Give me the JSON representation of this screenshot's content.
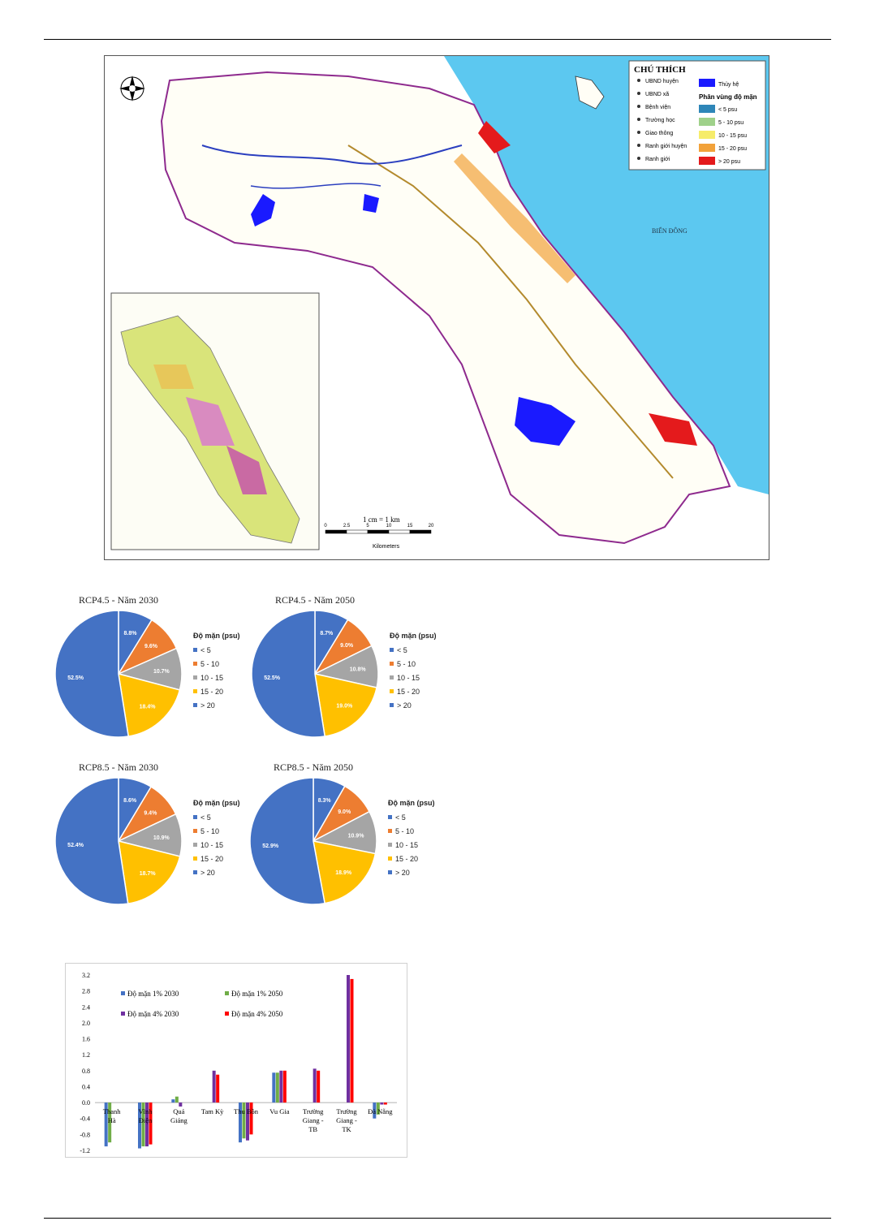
{
  "map": {
    "legend_title": "CHÚ THÍCH",
    "legend_items": [
      "UBND huyện",
      "UBND xã",
      "Bệnh viện",
      "Trường học",
      "Giao thông",
      "Ranh giới huyện",
      "Ranh giới"
    ],
    "legend_water": "Thủy hệ",
    "legend_salinity_title": "Phân vùng độ mặn",
    "salinity_classes": [
      "< 5 psu",
      "5 - 10 psu",
      "10 - 15 psu",
      "15 - 20 psu",
      "> 20 psu"
    ],
    "salinity_colors": [
      "#2e86b8",
      "#9fd18a",
      "#f6ec6a",
      "#f2a23a",
      "#e41a1c"
    ],
    "sea_label": "BIỂN ĐÔNG",
    "scale_label": "1 cm = 1 km",
    "scale_unit": "Kilometers",
    "scale_ticks": [
      "0",
      "2.5",
      "5",
      "10",
      "15",
      "20"
    ]
  },
  "pies": [
    {
      "title": "RCP4.5 - Năm 2030",
      "legend_title": "Độ mặn (psu)",
      "labels": [
        "< 5",
        "5 - 10",
        "10 - 15",
        "15 - 20",
        "> 20"
      ],
      "values": [
        8.8,
        9.6,
        10.7,
        18.4,
        52.5
      ],
      "value_labels": [
        "8.8%",
        "9.6%",
        "10.7%",
        "18.4%",
        "52.5%"
      ]
    },
    {
      "title": "RCP4.5 - Năm 2050",
      "legend_title": "Độ mặn (psu)",
      "labels": [
        "< 5",
        "5 - 10",
        "10 - 15",
        "15 - 20",
        "> 20"
      ],
      "values": [
        8.7,
        9.0,
        10.8,
        19.0,
        52.5
      ],
      "value_labels": [
        "8.7%",
        "9.0%",
        "10.8%",
        "19.0%",
        "52.5%"
      ]
    },
    {
      "title": "RCP8.5 - Năm 2030",
      "legend_title": "Độ mặn (psu)",
      "labels": [
        "< 5",
        "5 - 10",
        "10 - 15",
        "15 - 20",
        "> 20"
      ],
      "values": [
        8.6,
        9.4,
        10.9,
        18.7,
        52.4
      ],
      "value_labels": [
        "8.6%",
        "9.4%",
        "10.9%",
        "18.7%",
        "52.4%"
      ]
    },
    {
      "title": "RCP8.5 - Năm 2050",
      "legend_title": "Độ mặn (psu)",
      "labels": [
        "< 5",
        "5 - 10",
        "10 - 15",
        "15 - 20",
        "> 20"
      ],
      "values": [
        8.3,
        9.0,
        10.9,
        18.9,
        52.9
      ],
      "value_labels": [
        "8.3%",
        "9.0%",
        "10.9%",
        "18.9%",
        "52.9%"
      ]
    }
  ],
  "pie_colors": [
    "#4472c4",
    "#ed7d31",
    "#a5a5a5",
    "#ffc000",
    "#4472c4"
  ],
  "chart_data": {
    "type": "bar",
    "categories": [
      "Thanh Hà",
      "Vĩnh Điện",
      "Quá Giáng",
      "Tam Kỳ",
      "Thu Bồn",
      "Vu Gia",
      "Trường Giang - TB",
      "Trường Giang - TK",
      "Đà Nẵng"
    ],
    "category_display": [
      [
        "Thanh",
        "Hà"
      ],
      [
        "Vĩnh",
        "Điện"
      ],
      [
        "Quá",
        "Giáng"
      ],
      [
        "Tam Kỳ"
      ],
      [
        "Thu Bồn"
      ],
      [
        "Vu Gia"
      ],
      [
        "Trường",
        "Giang -",
        "TB"
      ],
      [
        "Trường",
        "Giang -",
        "TK"
      ],
      [
        "Đà Nẵng"
      ]
    ],
    "series": [
      {
        "name": "Độ mặn 1% 2030",
        "color": "#4472c4",
        "values": [
          -1.1,
          -1.15,
          0.08,
          0.0,
          -1.0,
          0.75,
          0.0,
          0.0,
          -0.4
        ]
      },
      {
        "name": "Độ mặn 1% 2050",
        "color": "#70ad47",
        "values": [
          -1.0,
          -1.1,
          0.15,
          0.0,
          -0.9,
          0.75,
          0.0,
          0.0,
          -0.3
        ]
      },
      {
        "name": "Độ mặn 4% 2030",
        "color": "#7030a0",
        "values": [
          0.0,
          -1.1,
          -0.1,
          0.8,
          -0.95,
          0.8,
          0.85,
          3.2,
          -0.05
        ]
      },
      {
        "name": "Độ mặn 4% 2050",
        "color": "#ff0000",
        "values": [
          0.0,
          -1.05,
          0.0,
          0.7,
          -0.8,
          0.8,
          0.8,
          3.1,
          -0.05
        ]
      }
    ],
    "ylim": [
      -1.2,
      3.2
    ],
    "yticks": [
      "3.2",
      "2.8",
      "2.4",
      "2.0",
      "1.6",
      "1.2",
      "0.8",
      "0.4",
      "0.0",
      "-0.4",
      "-0.8",
      "-1.2"
    ]
  }
}
